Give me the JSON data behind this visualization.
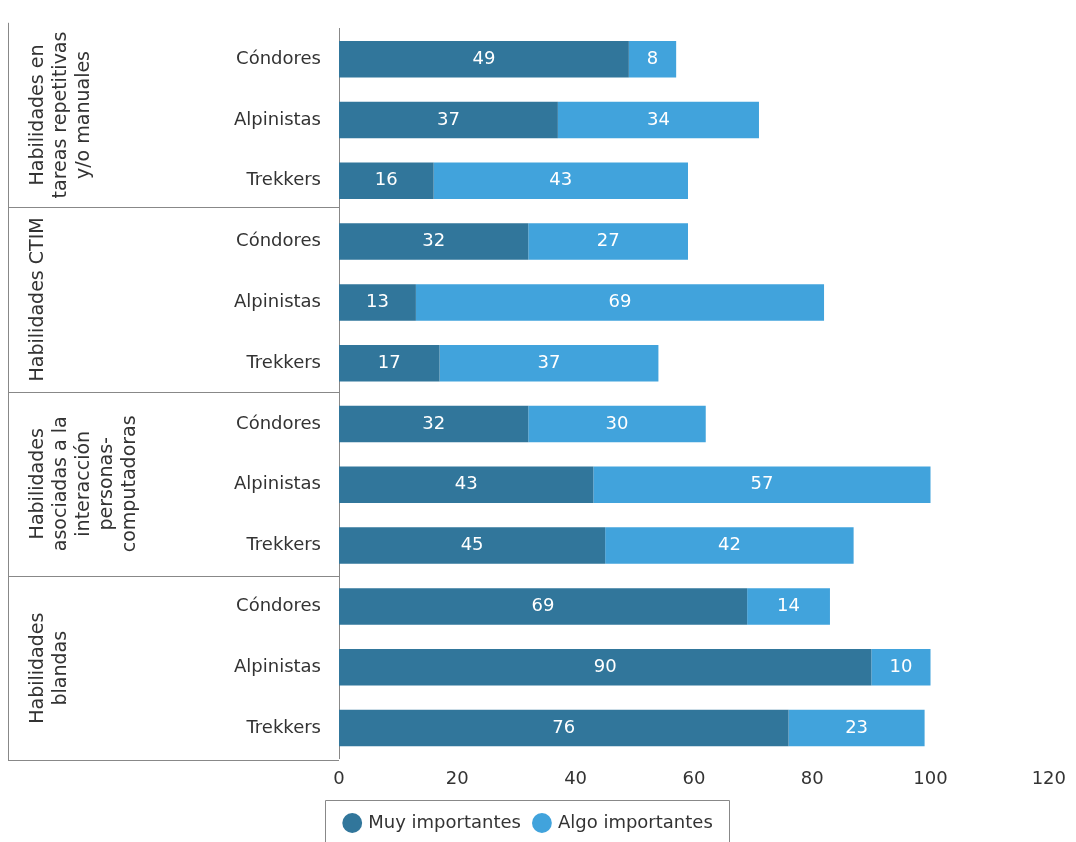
{
  "chart_data": {
    "type": "bar",
    "orientation": "horizontal",
    "stacked": true,
    "data_labels": true,
    "grid": false,
    "legend": "bottom",
    "marker": "circle",
    "categories": [
      "Cóndores",
      "Alpinistas",
      "Trekkers",
      "Cóndores",
      "Alpinistas",
      "Trekkers",
      "Cóndores",
      "Alpinistas",
      "Trekkers",
      "Cóndores",
      "Alpinistas",
      "Trekkers"
    ],
    "series": [
      {
        "name": "Muy importantes",
        "color": "#31769b",
        "values": [
          49,
          37,
          16,
          32,
          13,
          17,
          32,
          43,
          45,
          69,
          90,
          76
        ]
      },
      {
        "name": "Algo importantes",
        "color": "#41a3dc",
        "values": [
          8,
          34,
          43,
          27,
          69,
          37,
          30,
          57,
          42,
          14,
          10,
          23
        ]
      }
    ],
    "xlim": [
      0,
      120
    ],
    "xticks": [
      0,
      20,
      40,
      60,
      80,
      100,
      120
    ],
    "annotations": [
      "Habilidades en tareas repetitivas y/o manuales",
      "Habilidades CTIM",
      "Habilidades asociadas a la interacción personas-computadoras",
      "Habilidades blandas"
    ]
  }
}
